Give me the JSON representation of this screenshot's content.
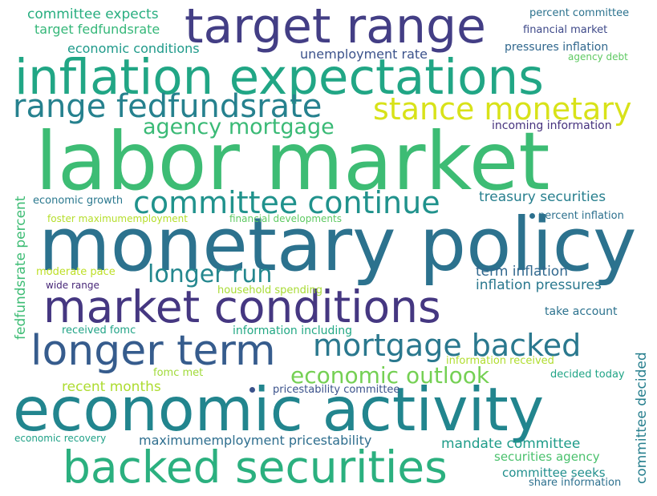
{
  "words": [
    {
      "text": "labor market",
      "color": "#3dbc74"
    },
    {
      "text": "monetary policy",
      "color": "#2c728e"
    },
    {
      "text": "economic activity",
      "color": "#22858e"
    },
    {
      "text": "inflation expectations",
      "color": "#21a685"
    },
    {
      "text": "target range",
      "color": "#433e85"
    },
    {
      "text": "market conditions",
      "color": "#453781"
    },
    {
      "text": "backed securities",
      "color": "#2bb07f"
    },
    {
      "text": "longer term",
      "color": "#365c8d"
    },
    {
      "text": "range fedfundsrate",
      "color": "#26818e"
    },
    {
      "text": "stance monetary",
      "color": "#d8e219"
    },
    {
      "text": "committee continue",
      "color": "#20928c"
    },
    {
      "text": "mortgage backed",
      "color": "#2a788e"
    },
    {
      "text": "agency mortgage",
      "color": "#3aba76"
    },
    {
      "text": "longer run",
      "color": "#24878e"
    },
    {
      "text": "economic outlook",
      "color": "#75d054"
    },
    {
      "text": "committee expects",
      "color": "#28ae80"
    },
    {
      "text": "target fedfundsrate",
      "color": "#35b779"
    },
    {
      "text": "economic conditions",
      "color": "#1f9a8a"
    },
    {
      "text": "unemployment rate",
      "color": "#3b528b"
    },
    {
      "text": "percent committee",
      "color": "#2c728e"
    },
    {
      "text": "financial market",
      "color": "#3e4989"
    },
    {
      "text": "pressures inflation",
      "color": "#31688e"
    },
    {
      "text": "agency debt",
      "color": "#5ec962"
    },
    {
      "text": "incoming information",
      "color": "#46327e"
    },
    {
      "text": "treasury securities",
      "color": "#277f8e"
    },
    {
      "text": "percent inflation",
      "color": "#2d708e"
    },
    {
      "text": "economic growth",
      "color": "#2a788e"
    },
    {
      "text": "foster maximumemployment",
      "color": "#b5de2b"
    },
    {
      "text": "financial developments",
      "color": "#5ec962"
    },
    {
      "text": "moderate pace",
      "color": "#bddf26"
    },
    {
      "text": "wide range",
      "color": "#482878"
    },
    {
      "text": "household spending",
      "color": "#a8db34"
    },
    {
      "text": "term inflation",
      "color": "#31688e"
    },
    {
      "text": "inflation pressures",
      "color": "#2a788e"
    },
    {
      "text": "take account",
      "color": "#2c728e"
    },
    {
      "text": "received fomc",
      "color": "#20a386"
    },
    {
      "text": "information including",
      "color": "#22a884"
    },
    {
      "text": "information received",
      "color": "#b0dd2f"
    },
    {
      "text": "fomc met",
      "color": "#a0da39"
    },
    {
      "text": "decided today",
      "color": "#20a486"
    },
    {
      "text": "recent months",
      "color": "#addc30"
    },
    {
      "text": "pricestability committee",
      "color": "#3b528b"
    },
    {
      "text": "economic recovery",
      "color": "#1fa187"
    },
    {
      "text": "maximumemployment pricestability",
      "color": "#2e6e8e"
    },
    {
      "text": "mandate committee",
      "color": "#1e9c89"
    },
    {
      "text": "securities agency",
      "color": "#4ac16d"
    },
    {
      "text": "committee seeks",
      "color": "#218f8d"
    },
    {
      "text": "share information",
      "color": "#2d708e"
    },
    {
      "text": "fedfundsrate percent",
      "color": "#3dbc74"
    },
    {
      "text": "committee decided",
      "color": "#277f8e"
    }
  ]
}
